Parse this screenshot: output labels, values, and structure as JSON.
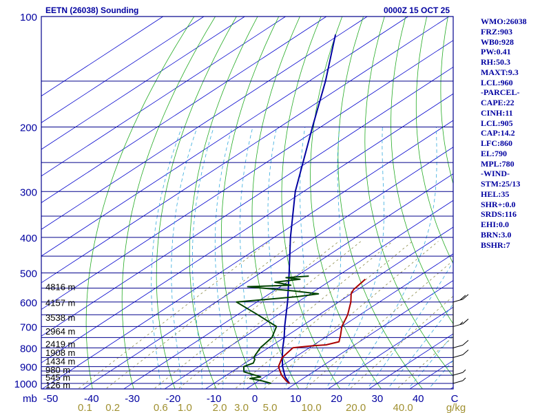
{
  "header": {
    "station_title": "EETN (26038) Sounding",
    "time_title": "0000Z 15 OCT 25"
  },
  "side_panel": [
    "WMO:26038",
    "FRZ:903",
    "WB0:928",
    "PW:0.41",
    "RH:50.3",
    "MAXT:9.3",
    "LCL:960",
    "-PARCEL-",
    "CAPE:22",
    "CINH:11",
    "LCL:905",
    "CAP:14.2",
    "LFC:860",
    "EL:790",
    "MPL:780",
    "-WIND-",
    "STM:25/13",
    "HEL:35",
    "SHR+:0.0",
    "SRDS:116",
    "EHI:0.0",
    "BRN:3.0",
    "BSHR:7"
  ],
  "colors": {
    "frame": "#00008b",
    "isobar": "#00008b",
    "isotherm": "#0000cd",
    "dry_adiabat": "#22aa22",
    "moist_adiabat": "#33aadd",
    "mixing_ratio": "#888844",
    "temperature": "#aa0000",
    "dewpoint": "#004400",
    "parcel": "#0000a0",
    "axis_labels": "#0000a0",
    "mixing_labels": "#a09030",
    "height_labels": "#000000"
  },
  "chart_data": {
    "type": "skew-t log-p sounding",
    "pressure_axis": {
      "scale": "log",
      "range_mb": [
        1000,
        100
      ],
      "labeled_ticks": [
        100,
        200,
        300,
        400,
        500,
        600,
        700,
        800,
        900,
        1000
      ],
      "unit_label": "mb"
    },
    "temperature_axis": {
      "unit": "°C",
      "ticks": [
        -50,
        -40,
        -30,
        -20,
        -10,
        0,
        10,
        20,
        30,
        40
      ],
      "tick_labels": [
        "-50",
        "-40",
        "-30",
        "-20",
        "-10",
        "0",
        "10",
        "20",
        "30",
        "40"
      ],
      "end_label": "C"
    },
    "mixing_ratio_axis": {
      "unit": "g/kg",
      "values": [
        0.1,
        0.2,
        0.6,
        1.0,
        2.0,
        3.0,
        5.0,
        10.0,
        20.0,
        40.0
      ],
      "labels": [
        "0.1",
        "0.2",
        "0.6",
        "1.0",
        "2.0",
        "3.0",
        "5.0",
        "10.0",
        "20.0",
        "40.0"
      ]
    },
    "isobar_lines_mb": [
      1000,
      950,
      925,
      900,
      850,
      800,
      750,
      700,
      650,
      600,
      550,
      500,
      450,
      400,
      350,
      300,
      250,
      200,
      150
    ],
    "height_labels": [
      {
        "p": 545,
        "label": "4816 m"
      },
      {
        "p": 602,
        "label": "4157 m"
      },
      {
        "p": 660,
        "label": "3538 m"
      },
      {
        "p": 720,
        "label": "2964 m"
      },
      {
        "p": 780,
        "label": "2419 m"
      },
      {
        "p": 823,
        "label": "1908 m"
      },
      {
        "p": 869,
        "label": "1434 m"
      },
      {
        "p": 917,
        "label": "980 m"
      },
      {
        "p": 961,
        "label": "545 m"
      },
      {
        "p": 1008,
        "label": "126 m"
      }
    ],
    "temperature_profile": [
      {
        "p": 1000,
        "t": 8.5
      },
      {
        "p": 985,
        "t": 6.8
      },
      {
        "p": 950,
        "t": 3.5
      },
      {
        "p": 925,
        "t": 1.5
      },
      {
        "p": 900,
        "t": -0.5
      },
      {
        "p": 860,
        "t": -2.5
      },
      {
        "p": 850,
        "t": -3
      },
      {
        "p": 800,
        "t": -4
      },
      {
        "p": 790,
        "t": 0
      },
      {
        "p": 785,
        "t": 3
      },
      {
        "p": 770,
        "t": 5
      },
      {
        "p": 740,
        "t": 3
      },
      {
        "p": 700,
        "t": 0
      },
      {
        "p": 650,
        "t": -3
      },
      {
        "p": 600,
        "t": -7
      },
      {
        "p": 570,
        "t": -10
      },
      {
        "p": 555,
        "t": -11
      },
      {
        "p": 520,
        "t": -12
      }
    ],
    "dewpoint_profile": [
      {
        "p": 1000,
        "t": 4
      },
      {
        "p": 985,
        "t": 1
      },
      {
        "p": 970,
        "t": -3
      },
      {
        "p": 960,
        "t": -1
      },
      {
        "p": 950,
        "t": -3
      },
      {
        "p": 930,
        "t": -7
      },
      {
        "p": 900,
        "t": -9
      },
      {
        "p": 880,
        "t": -8
      },
      {
        "p": 860,
        "t": -9
      },
      {
        "p": 850,
        "t": -10
      },
      {
        "p": 800,
        "t": -12
      },
      {
        "p": 750,
        "t": -13
      },
      {
        "p": 700,
        "t": -16
      },
      {
        "p": 650,
        "t": -25
      },
      {
        "p": 600,
        "t": -35
      },
      {
        "p": 580,
        "t": -22
      },
      {
        "p": 570,
        "t": -18
      },
      {
        "p": 560,
        "t": -25
      },
      {
        "p": 545,
        "t": -38
      },
      {
        "p": 540,
        "t": -28
      },
      {
        "p": 530,
        "t": -33
      },
      {
        "p": 520,
        "t": -28
      },
      {
        "p": 515,
        "t": -32
      },
      {
        "p": 510,
        "t": -27
      }
    ],
    "parcel_profile": [
      {
        "p": 1000,
        "t": 8.5
      },
      {
        "p": 960,
        "t": 5
      },
      {
        "p": 900,
        "t": 0.5
      },
      {
        "p": 850,
        "t": -3
      },
      {
        "p": 800,
        "t": -6.5
      },
      {
        "p": 750,
        "t": -10
      },
      {
        "p": 700,
        "t": -14
      },
      {
        "p": 600,
        "t": -22.5
      },
      {
        "p": 500,
        "t": -33
      },
      {
        "p": 400,
        "t": -46
      },
      {
        "p": 300,
        "t": -62
      },
      {
        "p": 250,
        "t": -71
      },
      {
        "p": 200,
        "t": -82
      },
      {
        "p": 150,
        "t": -96
      },
      {
        "p": 112,
        "t": -111
      }
    ],
    "wind_barbs": [
      {
        "p": 1000,
        "speed_kt": 5
      },
      {
        "p": 950,
        "speed_kt": 5
      },
      {
        "p": 850,
        "speed_kt": 10
      },
      {
        "p": 800,
        "speed_kt": 10
      },
      {
        "p": 700,
        "speed_kt": 15
      },
      {
        "p": 600,
        "speed_kt": 20
      }
    ]
  }
}
